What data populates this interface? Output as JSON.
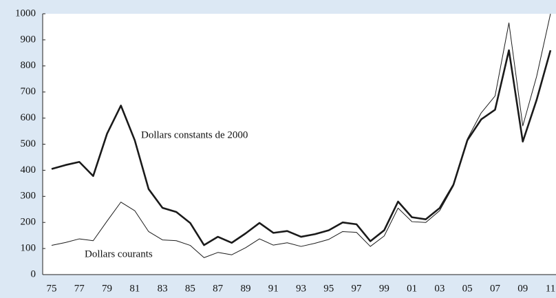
{
  "chart_data": {
    "type": "line",
    "categories": [
      "75",
      null,
      "77",
      null,
      "79",
      null,
      "81",
      null,
      "83",
      null,
      "85",
      null,
      "87",
      null,
      "89",
      null,
      "91",
      null,
      "93",
      null,
      "95",
      null,
      "97",
      null,
      "99",
      null,
      "01",
      null,
      "03",
      null,
      "05",
      null,
      "07",
      null,
      "09",
      null,
      "11"
    ],
    "series": [
      {
        "name": "Dollars constants de 2000",
        "color": "#1a1a1a",
        "width": 2.6,
        "values": [
          405,
          420,
          432,
          378,
          540,
          648,
          515,
          328,
          256,
          240,
          198,
          113,
          145,
          122,
          158,
          198,
          160,
          167,
          145,
          155,
          170,
          200,
          193,
          128,
          170,
          280,
          220,
          212,
          255,
          345,
          515,
          595,
          632,
          860,
          510,
          670,
          860
        ]
      },
      {
        "name": "Dollars courants",
        "color": "#1a1a1a",
        "width": 1,
        "values": [
          112,
          123,
          137,
          130,
          205,
          278,
          245,
          165,
          133,
          130,
          112,
          65,
          85,
          76,
          103,
          137,
          113,
          122,
          108,
          120,
          135,
          165,
          162,
          108,
          148,
          255,
          203,
          200,
          245,
          340,
          520,
          620,
          685,
          965,
          570,
          760,
          1000
        ]
      }
    ],
    "ylim": [
      0,
      1000
    ],
    "yticks": [
      0,
      100,
      200,
      300,
      400,
      500,
      600,
      700,
      800,
      900,
      1000
    ],
    "grid": false
  }
}
